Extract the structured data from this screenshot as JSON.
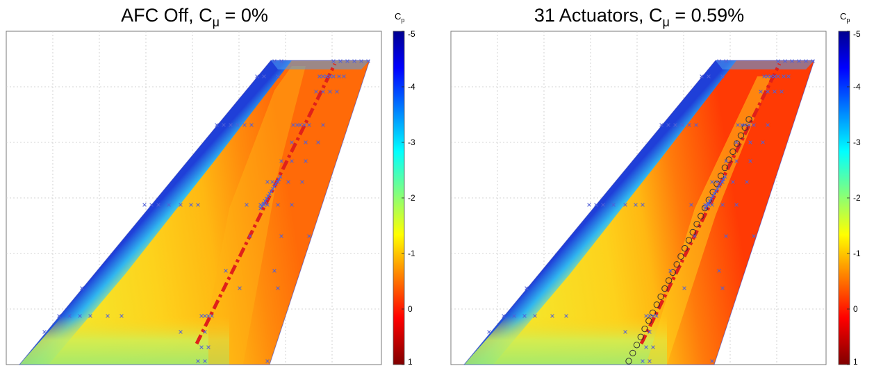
{
  "chart_data": [
    {
      "type": "heatmap",
      "title_main": "AFC Off, C",
      "title_sub": "μ",
      "title_tail": " = 0%",
      "colorbar": {
        "label_main": "C",
        "label_sub": "p",
        "range": [
          -5,
          1
        ],
        "reversed": true,
        "ticks": [
          "-5",
          "-4",
          "-3",
          "-2",
          "-1",
          "0",
          "1"
        ]
      },
      "grid": true,
      "actuators": 0,
      "colors": {
        "max_suction": "#00008f",
        "zero": "#ff3300",
        "positive": "#800000"
      }
    },
    {
      "type": "heatmap",
      "title_main": "31 Actuators, C",
      "title_sub": "μ",
      "title_tail": " = 0.59%",
      "colorbar": {
        "label_main": "C",
        "label_sub": "p",
        "range": [
          -5,
          1
        ],
        "reversed": true,
        "ticks": [
          "-5",
          "-4",
          "-3",
          "-2",
          "-1",
          "0",
          "1"
        ]
      },
      "grid": true,
      "actuators": 31,
      "colors": {
        "max_suction": "#00008f",
        "zero": "#ff3300",
        "positive": "#800000"
      }
    }
  ]
}
